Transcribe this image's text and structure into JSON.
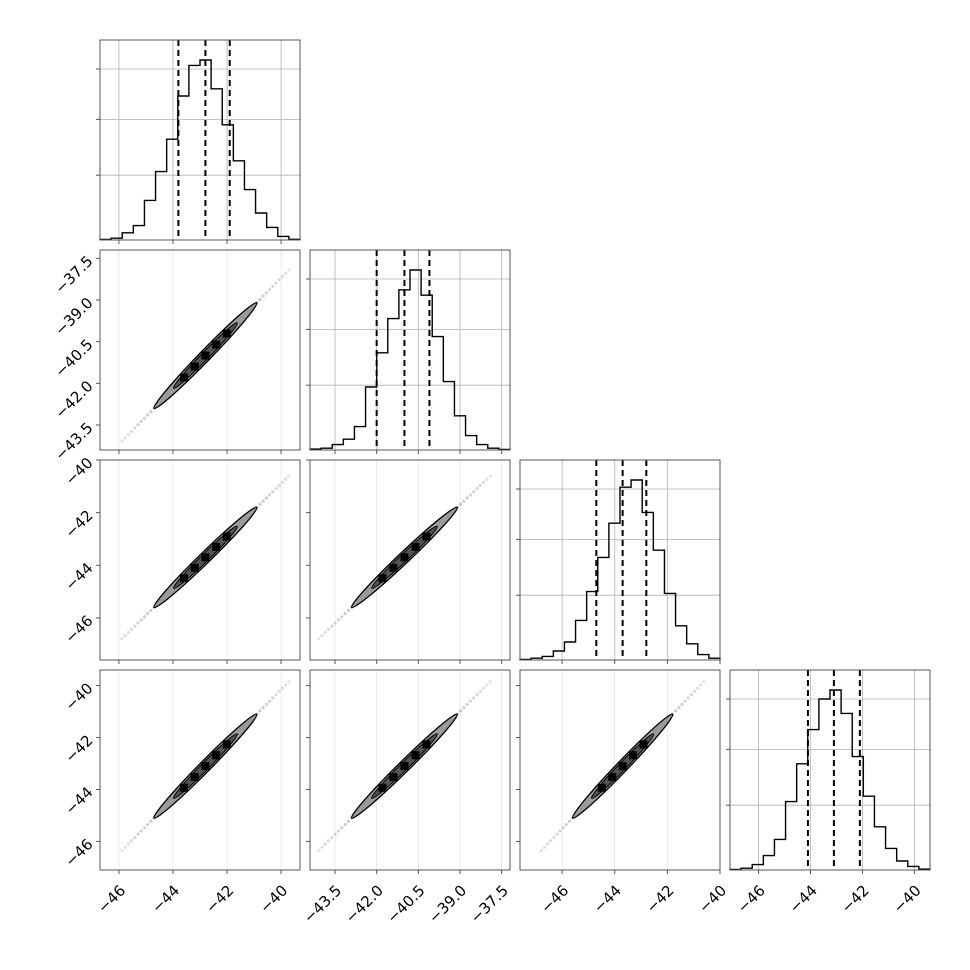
{
  "chart_data": {
    "type": "corner",
    "params": [
      {
        "range": [
          -46.7,
          -39.3
        ],
        "ticks": [
          -46,
          -44,
          -42,
          -40
        ],
        "tick_labels": [
          "−46",
          "−44",
          "−42",
          "−40"
        ],
        "median": -42.8,
        "q16": -43.8,
        "q84": -41.9,
        "hist_counts": [
          0.3,
          1,
          4,
          8,
          22,
          38,
          56,
          80,
          97,
          100,
          84,
          64,
          44,
          28,
          15,
          7,
          2,
          0.4
        ]
      },
      {
        "range": [
          -44.4,
          -37.2
        ],
        "ticks": [
          -43.5,
          -42.0,
          -40.5,
          -39.0,
          -37.5
        ],
        "tick_labels": [
          "−43.5",
          "−42.0",
          "−40.5",
          "−39.0",
          "−37.5"
        ],
        "median": -41.0,
        "q16": -42.0,
        "q84": -40.1,
        "hist_counts": [
          0.5,
          1,
          3,
          6,
          13,
          35,
          54,
          73,
          89,
          100,
          86,
          63,
          38,
          19,
          8,
          3,
          1,
          0.3
        ]
      },
      {
        "range": [
          -47.6,
          -40.0
        ],
        "ticks": [
          -46,
          -44,
          -42,
          -40
        ],
        "tick_labels": [
          "−46",
          "−44",
          "−42",
          "−40"
        ],
        "median": -43.7,
        "q16": -44.7,
        "q84": -42.8,
        "hist_counts": [
          0.3,
          1,
          2,
          5,
          10,
          22,
          38,
          57,
          76,
          96,
          100,
          82,
          61,
          37,
          19,
          9,
          3,
          1
        ]
      },
      {
        "range": [
          -47.1,
          -39.4
        ],
        "ticks": [
          -46,
          -44,
          -42,
          -40
        ],
        "tick_labels": [
          "−46",
          "−44",
          "−42",
          "−40"
        ],
        "median": -43.1,
        "q16": -44.1,
        "q84": -42.1,
        "hist_counts": [
          0.3,
          1,
          3,
          8,
          17,
          38,
          59,
          78,
          95,
          100,
          87,
          63,
          41,
          24,
          12,
          5,
          2,
          0.5
        ]
      }
    ],
    "y_ticks": {
      "1": {
        "ticks": [
          -43.5,
          -42.0,
          -40.5,
          -39.0,
          -37.5
        ],
        "tick_labels": [
          "−43.5",
          "−42.0",
          "−40.5",
          "−39.0",
          "−37.5"
        ]
      },
      "2": {
        "ticks": [
          -46,
          -44,
          -42,
          -40
        ],
        "tick_labels": [
          "−46",
          "−44",
          "−42",
          "−40"
        ]
      },
      "3": {
        "ticks": [
          -46,
          -44,
          -42,
          -40
        ],
        "tick_labels": [
          "−46",
          "−44",
          "−42",
          "−40"
        ]
      }
    },
    "grid": true,
    "quantile_line_style": "dashed",
    "colors": {
      "line": "#000000",
      "grid": "#b0b0b0",
      "scatter": "#777777",
      "contour_fill": "#9a9a9a",
      "frame": "#555555"
    },
    "title": "",
    "legend": "none"
  }
}
